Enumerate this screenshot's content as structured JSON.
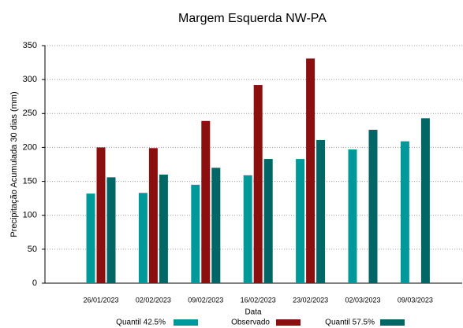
{
  "chart_data": {
    "type": "bar",
    "title": "Margem Esquerda NW-PA",
    "x_label": "Data",
    "y_label": "Precipitação Acumulada 30 dias (mm)",
    "categories": [
      "26/01/2023",
      "02/02/2023",
      "09/02/2023",
      "16/02/2023",
      "23/02/2023",
      "02/03/2023",
      "09/03/2023"
    ],
    "series": [
      {
        "name": "Quantil 42.5%",
        "color": "#009999",
        "values": [
          132,
          133,
          145,
          159,
          183,
          197,
          209
        ]
      },
      {
        "name": "Observado",
        "color": "#8b0f0f",
        "values": [
          200,
          199,
          239,
          292,
          331,
          null,
          null
        ]
      },
      {
        "name": "Quantil 57.5%",
        "color": "#006666",
        "values": [
          156,
          160,
          170,
          183,
          211,
          226,
          243
        ]
      }
    ],
    "ylim": [
      0,
      350
    ],
    "yticks": [
      0,
      50,
      100,
      150,
      200,
      250,
      300,
      350
    ],
    "grid": true
  }
}
